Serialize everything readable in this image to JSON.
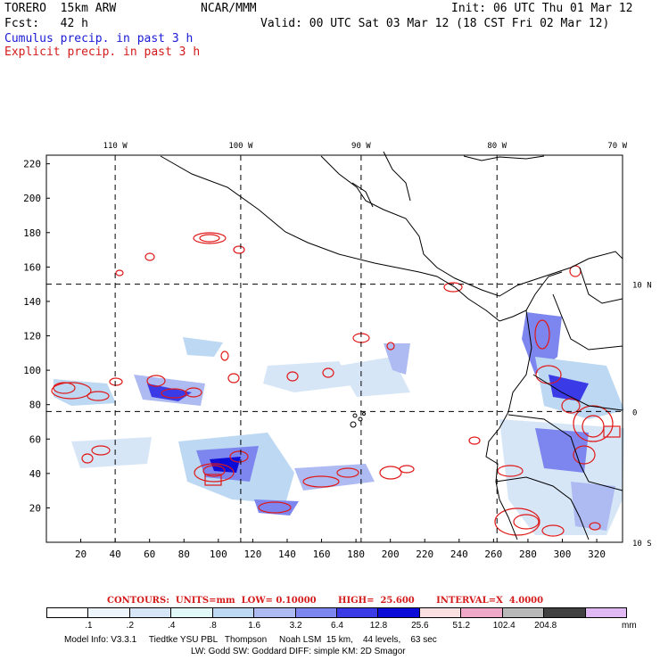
{
  "header": {
    "model": "TORERO  15km ARW",
    "org": "NCAR/MMM",
    "init": "Init: 06 UTC Thu 01 Mar 12",
    "fcst": "Fcst:   42 h",
    "valid": "Valid: 00 UTC Sat 03 Mar 12 (18 CST Fri 02 Mar 12)",
    "field1": "Cumulus precip. in past 3 h",
    "field2": "Explicit precip. in past 3 h"
  },
  "axes": {
    "lon_labels": [
      "110 W",
      "100 W",
      "90 W",
      "80 W",
      "70 W"
    ],
    "lat_labels": [
      "10 N",
      "0",
      "10 S"
    ],
    "y_ticks": [
      "220",
      "200",
      "180",
      "160",
      "140",
      "120",
      "100",
      "80",
      "60",
      "40",
      "20"
    ],
    "x_ticks": [
      "20",
      "40",
      "60",
      "80",
      "100",
      "120",
      "140",
      "160",
      "180",
      "200",
      "220",
      "240",
      "260",
      "280",
      "300",
      "320"
    ]
  },
  "map_data": {
    "grid_index_range": {
      "x": [
        0,
        335
      ],
      "y": [
        0,
        225
      ]
    },
    "meridians_grid_x": [
      40,
      113,
      183,
      262
    ],
    "parallels_grid_y": [
      150,
      76
    ],
    "lon_meridians_deg": [
      -110,
      -100,
      -90,
      -80,
      -70
    ],
    "lat_parallels_deg": [
      10,
      0,
      -10
    ]
  },
  "contour_note": "CONTOURS:  UNITS=mm  LOW= 0.10000       HIGH=  25.600       INTERVAL=X  4.0000",
  "legend": {
    "colors": [
      "#ffffff",
      "#eef4fb",
      "#d7e6f6",
      "#e0f8f8",
      "#bcd8f2",
      "#aebbf2",
      "#7d86ee",
      "#3a3ae6",
      "#0c0cd8",
      "#fae0e0",
      "#f0a8c8",
      "#b8b8b8",
      "#404040",
      "#e0b8f4"
    ],
    "labels": [
      ".1",
      ".2",
      ".4",
      ".8",
      "1.6",
      "3.2",
      "6.4",
      "12.8",
      "25.6",
      "51.2",
      "102.4",
      "204.8"
    ],
    "unit": "mm"
  },
  "footer": {
    "line1": "Model Info: V3.3.1     Tiedtke YSU PBL   Thompson     Noah LSM  15 km,    44 levels,    63 sec",
    "line2": "LW: Godd SW: Goddard DIFF: simple KM: 2D Smagor"
  }
}
